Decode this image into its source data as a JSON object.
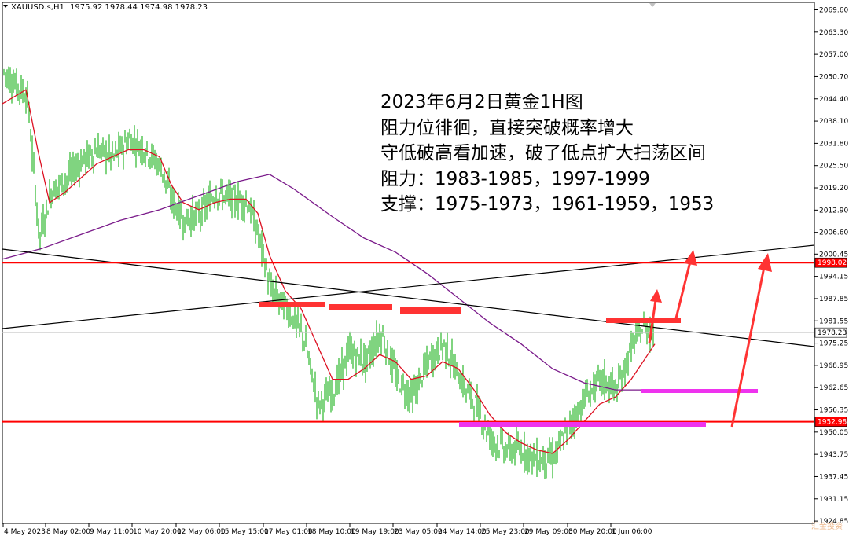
{
  "header": {
    "symbol": "XAUUSD.s,H1",
    "ohlc": "1975.92 1978.44 1974.98 1978.23"
  },
  "annotation": {
    "lines": [
      "2023年6月2日黄金1H图",
      "阻力位徘徊，直接突破概率增大",
      "守低破高看加速，破了低点扩大扫荡区间",
      "阻力：1983-1985，1997-1999",
      "支撑：1975-1973，1961-1959，1953"
    ]
  },
  "colors": {
    "candle": "#00aa00",
    "ma_fast": "#dd1122",
    "ma_slow": "#7a1a8a",
    "resistance": "#ff3333",
    "support_zone": "#ee33ee",
    "trendline": "#000000",
    "price_line": "#ff0000"
  },
  "chart_data": {
    "type": "candlestick",
    "ylim": [
      1924.65,
      2070.6
    ],
    "y_ticks": [
      "2069.60",
      "2063.30",
      "2057.00",
      "2050.70",
      "2044.40",
      "2038.10",
      "2031.80",
      "2025.50",
      "2019.20",
      "2012.90",
      "2006.60",
      "2000.45",
      "1994.15",
      "1987.85",
      "1981.55",
      "1975.25",
      "1968.95",
      "1962.65",
      "1956.35",
      "1950.05",
      "1943.75",
      "1937.45",
      "1931.15",
      "1924.85"
    ],
    "x_ticks": [
      "4 May 2023",
      "8 May 02:00",
      "9 May 11:00",
      "10 May 20:00",
      "12 May 06:00",
      "15 May 15:00",
      "17 May 01:00",
      "18 May 10:00",
      "19 May 19:00",
      "23 May 05:00",
      "24 May 14:00",
      "25 May 23:00",
      "29 May 09:00",
      "30 May 20:00",
      "1 Jun 06:00"
    ],
    "price_labels": [
      {
        "value": 1998.02,
        "text": "1998.02",
        "style": "red"
      },
      {
        "value": 1978.23,
        "text": "1978.23",
        "style": "current"
      },
      {
        "value": 1952.98,
        "text": "1952.98",
        "style": "red"
      }
    ],
    "horizontal_lines": [
      1998.02,
      1952.98
    ],
    "resistance_levels": [
      1983,
      1985,
      1997,
      1999
    ],
    "support_levels": [
      1975,
      1973,
      1961,
      1959,
      1953
    ],
    "series": [
      {
        "x": [
          0,
          30,
          45,
          60,
          80,
          100,
          120,
          140,
          160,
          180,
          200,
          215,
          230,
          250,
          270,
          290,
          310,
          325,
          340,
          360,
          380,
          400,
          420,
          440,
          460,
          480,
          500,
          520,
          540,
          560,
          580,
          600,
          620,
          640,
          660,
          680,
          700,
          720,
          740,
          760,
          780,
          800,
          815,
          830
        ],
        "values": [
          2052,
          2045,
          2005,
          2018,
          2022,
          2027,
          2030,
          2028,
          2033,
          2030,
          2025,
          2015,
          2010,
          2012,
          2018,
          2016,
          2015,
          2005,
          1990,
          1985,
          1978,
          1958,
          1962,
          1973,
          1970,
          1978,
          1965,
          1960,
          1970,
          1975,
          1965,
          1958,
          1948,
          1945,
          1945,
          1942,
          1943,
          1952,
          1960,
          1965,
          1962,
          1975,
          1980,
          1978
        ]
      },
      {
        "x": [
          0,
          30,
          45,
          60,
          80,
          100,
          120,
          140,
          160,
          180,
          200,
          215,
          230,
          250,
          270,
          290,
          310,
          325,
          340,
          360,
          380,
          400,
          420,
          440,
          460,
          480,
          500,
          520,
          540,
          560,
          580,
          600,
          620,
          640,
          660,
          680,
          700,
          720,
          740,
          760,
          780,
          800,
          815,
          830
        ],
        "values": [
          2043,
          2047,
          2030,
          2015,
          2018,
          2022,
          2026,
          2028,
          2030,
          2030,
          2028,
          2020,
          2015,
          2013,
          2015,
          2016,
          2016,
          2012,
          2000,
          1990,
          1985,
          1975,
          1965,
          1965,
          1968,
          1972,
          1970,
          1965,
          1966,
          1970,
          1968,
          1962,
          1955,
          1950,
          1947,
          1945,
          1944,
          1948,
          1953,
          1958,
          1960,
          1965,
          1970,
          1975
        ]
      },
      {
        "x": [
          0,
          50,
          100,
          150,
          200,
          250,
          300,
          340,
          370,
          420,
          460,
          500,
          540,
          580,
          620,
          660,
          700,
          740,
          780,
          815
        ],
        "values": [
          1999,
          2002,
          2006,
          2010,
          2013,
          2017,
          2021,
          2023,
          2019,
          2011,
          2005,
          2001,
          1995,
          1988,
          1981,
          1975,
          1968,
          1964,
          1962,
          1962
        ]
      }
    ]
  },
  "watermark": "汇金投资"
}
